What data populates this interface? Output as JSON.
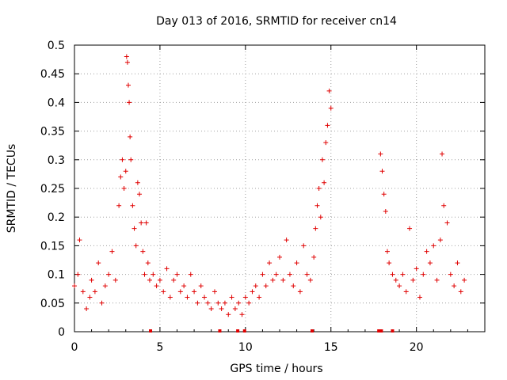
{
  "chart_data": {
    "type": "scatter",
    "title": "Day 013 of 2016, SRMTID for receiver cn14",
    "xlabel": "GPS time / hours",
    "ylabel": "SRMTID / TECUs",
    "xlim": [
      0,
      24
    ],
    "ylim": [
      0,
      0.5
    ],
    "grid": true,
    "marker": "plus",
    "marker_color": "#e00000",
    "x_ticks": [
      0,
      5,
      10,
      15,
      20
    ],
    "x_tick_labels": [
      "0",
      "5",
      "10",
      "15",
      "20"
    ],
    "y_ticks": [
      0,
      0.05,
      0.1,
      0.15,
      0.2,
      0.25,
      0.3,
      0.35,
      0.4,
      0.45,
      0.5
    ],
    "y_tick_labels": [
      "0",
      "0.05",
      "0.1",
      "0.15",
      "0.2",
      "0.25",
      "0.3",
      "0.35",
      "0.4",
      "0.45",
      "0.5"
    ],
    "series": [
      {
        "name": "SRMTID",
        "x": [
          0.0,
          0.2,
          0.3,
          0.5,
          0.7,
          0.9,
          1.0,
          1.2,
          1.4,
          1.6,
          1.8,
          2.0,
          2.2,
          2.4,
          2.6,
          2.7,
          2.8,
          2.9,
          3.0,
          3.05,
          3.1,
          3.15,
          3.2,
          3.25,
          3.3,
          3.4,
          3.5,
          3.6,
          3.7,
          3.8,
          3.9,
          4.0,
          4.1,
          4.2,
          4.3,
          4.4,
          4.6,
          4.8,
          5.0,
          5.2,
          5.4,
          5.6,
          5.8,
          6.0,
          6.2,
          6.4,
          6.6,
          6.8,
          7.0,
          7.2,
          7.4,
          7.6,
          7.8,
          8.0,
          8.2,
          8.4,
          8.6,
          8.8,
          9.0,
          9.2,
          9.4,
          9.6,
          9.8,
          10.0,
          10.2,
          10.4,
          10.6,
          10.8,
          11.0,
          11.2,
          11.4,
          11.6,
          11.8,
          12.0,
          12.2,
          12.4,
          12.6,
          12.8,
          13.0,
          13.2,
          13.4,
          13.6,
          13.8,
          14.0,
          14.1,
          14.2,
          14.3,
          14.4,
          14.5,
          14.6,
          14.7,
          14.8,
          14.9,
          15.0,
          17.9,
          18.0,
          18.1,
          18.2,
          18.3,
          18.4,
          18.6,
          18.8,
          19.0,
          19.2,
          19.4,
          19.6,
          19.8,
          20.0,
          20.2,
          20.4,
          20.6,
          20.8,
          21.0,
          21.2,
          21.4,
          21.5,
          21.6,
          21.8,
          22.0,
          22.2,
          22.4,
          22.6,
          22.8
        ],
        "y": [
          0.08,
          0.1,
          0.16,
          0.07,
          0.04,
          0.06,
          0.09,
          0.07,
          0.12,
          0.05,
          0.08,
          0.1,
          0.14,
          0.09,
          0.22,
          0.27,
          0.3,
          0.25,
          0.28,
          0.48,
          0.47,
          0.43,
          0.4,
          0.34,
          0.3,
          0.22,
          0.18,
          0.15,
          0.26,
          0.24,
          0.19,
          0.14,
          0.1,
          0.19,
          0.12,
          0.09,
          0.1,
          0.08,
          0.09,
          0.07,
          0.11,
          0.06,
          0.09,
          0.1,
          0.07,
          0.08,
          0.06,
          0.1,
          0.07,
          0.05,
          0.08,
          0.06,
          0.05,
          0.04,
          0.07,
          0.05,
          0.04,
          0.05,
          0.03,
          0.06,
          0.04,
          0.05,
          0.03,
          0.06,
          0.05,
          0.07,
          0.08,
          0.06,
          0.1,
          0.08,
          0.12,
          0.09,
          0.1,
          0.13,
          0.09,
          0.16,
          0.1,
          0.08,
          0.12,
          0.07,
          0.15,
          0.1,
          0.09,
          0.13,
          0.18,
          0.22,
          0.25,
          0.2,
          0.3,
          0.26,
          0.33,
          0.36,
          0.42,
          0.39,
          0.31,
          0.28,
          0.24,
          0.21,
          0.14,
          0.12,
          0.1,
          0.09,
          0.08,
          0.1,
          0.07,
          0.18,
          0.09,
          0.11,
          0.06,
          0.1,
          0.14,
          0.12,
          0.15,
          0.09,
          0.16,
          0.31,
          0.22,
          0.19,
          0.1,
          0.08,
          0.12,
          0.07,
          0.09
        ]
      }
    ],
    "bottom_markers_x": [
      4.45,
      8.5,
      9.55,
      9.95,
      13.9,
      17.8,
      17.95,
      18.6
    ]
  }
}
